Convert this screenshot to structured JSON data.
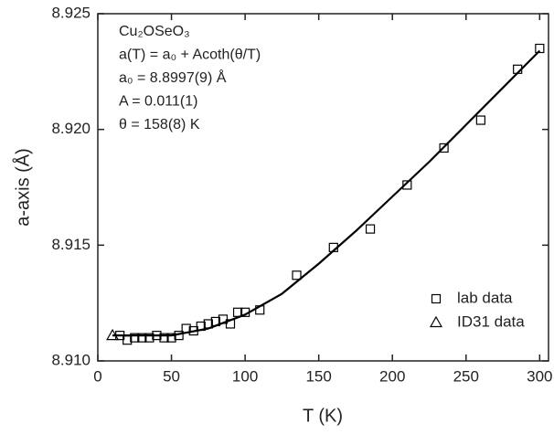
{
  "chart_data": {
    "type": "scatter",
    "xlabel": "T (K)",
    "ylabel": "a-axis (Å)",
    "annotations": [
      "Cu₂OSeO₃",
      "a(T) = a₀ + Acoth(θ/T)",
      "a₀ = 8.8997(9) Å",
      "A = 0.011(1)",
      "θ = 158(8) K"
    ],
    "xlim": [
      0,
      306
    ],
    "xticks": [
      0,
      50,
      100,
      150,
      200,
      250,
      300
    ],
    "ylim": [
      8.91,
      8.925
    ],
    "yticks": [
      {
        "value": 8.91,
        "label": "8.910"
      },
      8.915,
      {
        "value": 8.92,
        "label": "8.920"
      },
      8.925
    ],
    "legend": "lower right",
    "series": [
      {
        "name": "lab data",
        "marker": "square",
        "color": "#000000",
        "x": [
          15,
          20,
          25,
          30,
          35,
          40,
          45,
          50,
          55,
          60,
          65,
          70,
          75,
          80,
          85,
          90,
          95,
          100,
          110,
          135,
          160,
          185,
          210,
          235,
          260,
          285,
          300
        ],
        "values": [
          8.9111,
          8.9109,
          8.911,
          8.911,
          8.911,
          8.9111,
          8.911,
          8.911,
          8.9111,
          8.9114,
          8.9113,
          8.9115,
          8.9116,
          8.9117,
          8.9118,
          8.9116,
          8.9121,
          8.9121,
          8.9122,
          8.9137,
          8.9149,
          8.9157,
          8.9176,
          8.9192,
          8.9204,
          8.9226,
          8.9235
        ]
      },
      {
        "name": "ID31 data",
        "marker": "triangle",
        "color": "#000000",
        "x": [
          10
        ],
        "values": [
          8.9111
        ]
      },
      {
        "marker": "line",
        "color": "#000000",
        "x": [
          10,
          50,
          75,
          100,
          125,
          150,
          175,
          200,
          225,
          250,
          275,
          300
        ],
        "values": [
          8.9111,
          8.9111,
          8.9114,
          8.912,
          8.9129,
          8.9142,
          8.9156,
          8.9171,
          8.9186,
          8.9202,
          8.9218,
          8.9234
        ]
      }
    ]
  }
}
